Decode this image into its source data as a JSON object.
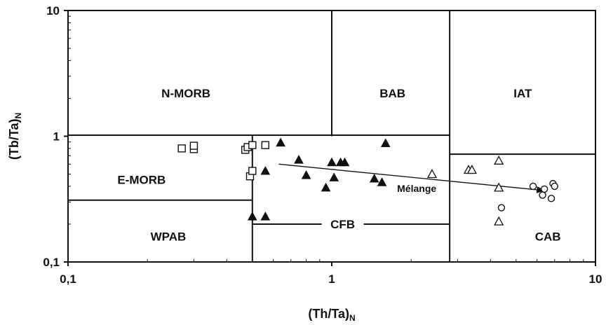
{
  "chart_data": {
    "type": "scatter",
    "xscale": "log",
    "yscale": "log",
    "xlim": [
      0.1,
      10
    ],
    "ylim": [
      0.1,
      10
    ],
    "xlabel": "(Th/Ta)",
    "xlabel_sub": "N",
    "ylabel": "(Tb/Ta)",
    "ylabel_sub": "N",
    "x_ticks": [
      {
        "value": 0.1,
        "label": "0,1"
      },
      {
        "value": 1,
        "label": "1"
      },
      {
        "value": 10,
        "label": "10"
      }
    ],
    "y_ticks": [
      {
        "value": 0.1,
        "label": "0,1"
      },
      {
        "value": 1,
        "label": "1"
      },
      {
        "value": 10,
        "label": "10"
      }
    ],
    "field_boundaries": [
      {
        "x": [
          1,
          1
        ],
        "y": [
          1,
          10
        ]
      },
      {
        "x": [
          2.8,
          2.8
        ],
        "y": [
          0.1,
          10
        ]
      },
      {
        "x": [
          0.1,
          2.8
        ],
        "y": [
          1.02,
          1.02
        ]
      },
      {
        "x": [
          0.5,
          0.5
        ],
        "y": [
          0.1,
          1.02
        ]
      },
      {
        "x": [
          0.1,
          0.5
        ],
        "y": [
          0.31,
          0.31
        ]
      },
      {
        "x": [
          0.5,
          2.8
        ],
        "y": [
          0.2,
          0.2
        ]
      },
      {
        "x": [
          2.8,
          10
        ],
        "y": [
          0.72,
          0.72
        ]
      }
    ],
    "fields": [
      {
        "label": "N-MORB",
        "x": 0.28,
        "y": 2.2
      },
      {
        "label": "BAB",
        "x": 1.7,
        "y": 2.2
      },
      {
        "label": "IAT",
        "x": 5.3,
        "y": 2.2
      },
      {
        "label": "E-MORB",
        "x": 0.19,
        "y": 0.45
      },
      {
        "label": "WPAB",
        "x": 0.24,
        "y": 0.16
      },
      {
        "label": "CFB",
        "x": 1.1,
        "y": 0.2
      },
      {
        "label": "CAB",
        "x": 6.6,
        "y": 0.16
      }
    ],
    "annotation": {
      "label": "Mélange",
      "x": 2.1,
      "y": 0.4
    },
    "trend_arrow": {
      "from": [
        0.63,
        0.6
      ],
      "to": [
        6.4,
        0.37
      ]
    },
    "series": [
      {
        "marker": "open-square",
        "points": [
          [
            0.27,
            0.8
          ],
          [
            0.3,
            0.79
          ],
          [
            0.3,
            0.84
          ],
          [
            0.47,
            0.78
          ],
          [
            0.48,
            0.82
          ],
          [
            0.5,
            0.85
          ],
          [
            0.49,
            0.48
          ],
          [
            0.5,
            0.53
          ],
          [
            0.56,
            0.85
          ]
        ]
      },
      {
        "marker": "filled-triangle",
        "points": [
          [
            0.5,
            0.23
          ],
          [
            0.56,
            0.23
          ],
          [
            0.56,
            0.53
          ],
          [
            0.64,
            0.89
          ],
          [
            0.75,
            0.65
          ],
          [
            0.8,
            0.49
          ],
          [
            0.95,
            0.39
          ],
          [
            1.0,
            0.62
          ],
          [
            1.02,
            0.47
          ],
          [
            1.08,
            0.62
          ],
          [
            1.12,
            0.62
          ],
          [
            1.45,
            0.46
          ],
          [
            1.55,
            0.43
          ],
          [
            1.6,
            0.88
          ]
        ]
      },
      {
        "marker": "open-triangle",
        "points": [
          [
            2.4,
            0.5
          ],
          [
            3.3,
            0.54
          ],
          [
            3.4,
            0.54
          ],
          [
            4.3,
            0.64
          ],
          [
            4.3,
            0.39
          ],
          [
            4.3,
            0.21
          ]
        ]
      },
      {
        "marker": "open-circle",
        "points": [
          [
            4.4,
            0.27
          ],
          [
            5.8,
            0.4
          ],
          [
            6.3,
            0.34
          ],
          [
            6.4,
            0.38
          ],
          [
            6.8,
            0.32
          ],
          [
            6.9,
            0.42
          ],
          [
            7.0,
            0.4
          ]
        ]
      }
    ]
  }
}
